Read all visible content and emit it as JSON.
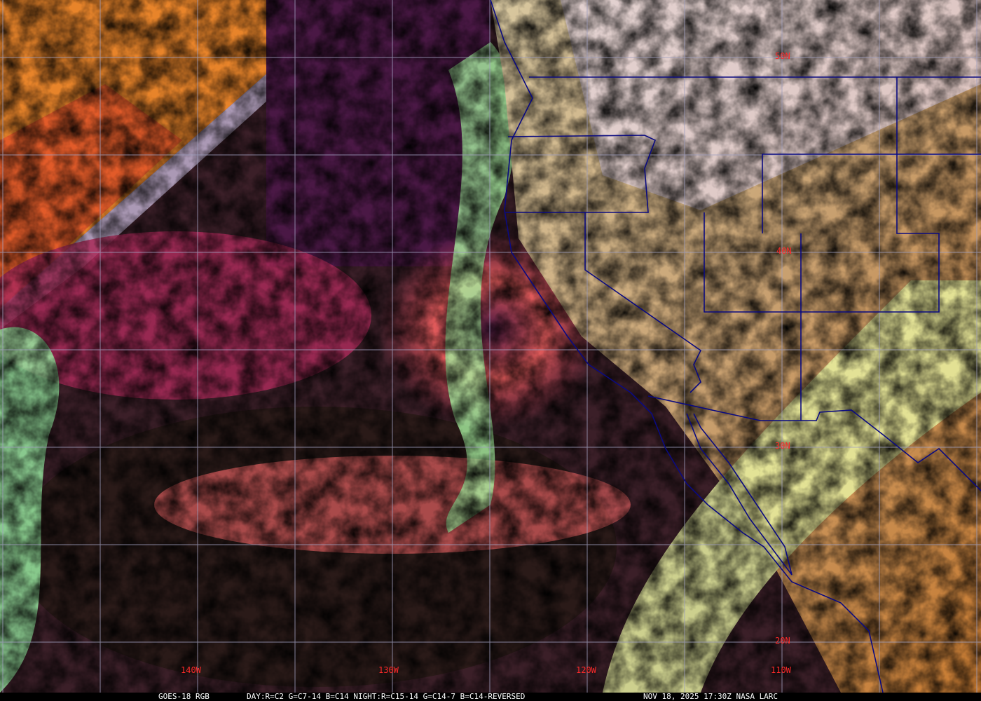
{
  "caption": {
    "product": "GOES-18 RGB",
    "recipe": "DAY:R=C2 G=C7-14 B=C14 NIGHT:R=C15-14 G=C14-7 B=C14-REVERSED",
    "timestamp": "NOV 18, 2025 17:30Z NASA LARC"
  },
  "latitude_labels": [
    "50N",
    "40N",
    "30N",
    "20N"
  ],
  "longitude_labels": [
    "140W",
    "130W",
    "120W",
    "110W"
  ],
  "colors": {
    "grid": "#a0a0c0",
    "label": "#ff2a2a",
    "boundaries": "#0a0a80"
  }
}
